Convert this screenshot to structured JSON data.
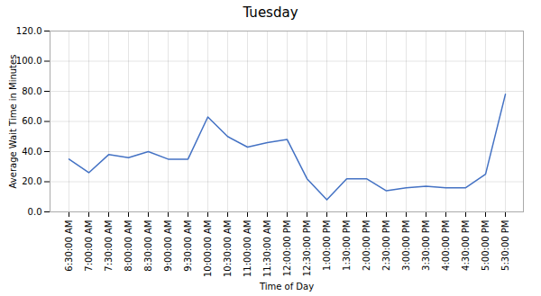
{
  "chart_data": {
    "type": "line",
    "title": "Tuesday",
    "xlabel": "Time of Day",
    "ylabel": "Average Wait Time in Minutes",
    "categories": [
      "6:30:00 AM",
      "7:00:00 AM",
      "7:30:00 AM",
      "8:00:00 AM",
      "8:30:00 AM",
      "9:00:00 AM",
      "9:30:00 AM",
      "10:00:00 AM",
      "10:30:00 AM",
      "11:00:00 AM",
      "11:30:00 AM",
      "12:00:00 PM",
      "12:30:00 PM",
      "1:00:00 PM",
      "1:30:00 PM",
      "2:00:00 PM",
      "2:30:00 PM",
      "3:00:00 PM",
      "3:30:00 PM",
      "4:00:00 PM",
      "4:30:00 PM",
      "5:00:00 PM",
      "5:30:00 PM"
    ],
    "values": [
      35.0,
      26.0,
      38.0,
      36.0,
      40.0,
      35.0,
      35.0,
      63.0,
      50.0,
      43.0,
      46.0,
      48.0,
      22.0,
      8.0,
      22.0,
      22.0,
      14.0,
      16.0,
      17.0,
      16.0,
      16.0,
      25.0,
      78.0
    ],
    "color": "#4472C4",
    "ylim": [
      0,
      120
    ],
    "yticks": [
      {
        "value": 0,
        "label": "0.0"
      },
      {
        "value": 20,
        "label": "20.0"
      },
      {
        "value": 40,
        "label": "40.0"
      },
      {
        "value": 60,
        "label": "60.0"
      },
      {
        "value": 80,
        "label": "80.0"
      },
      {
        "value": 100,
        "label": "100.0"
      },
      {
        "value": 120,
        "label": "120.0"
      }
    ],
    "grid": true
  }
}
